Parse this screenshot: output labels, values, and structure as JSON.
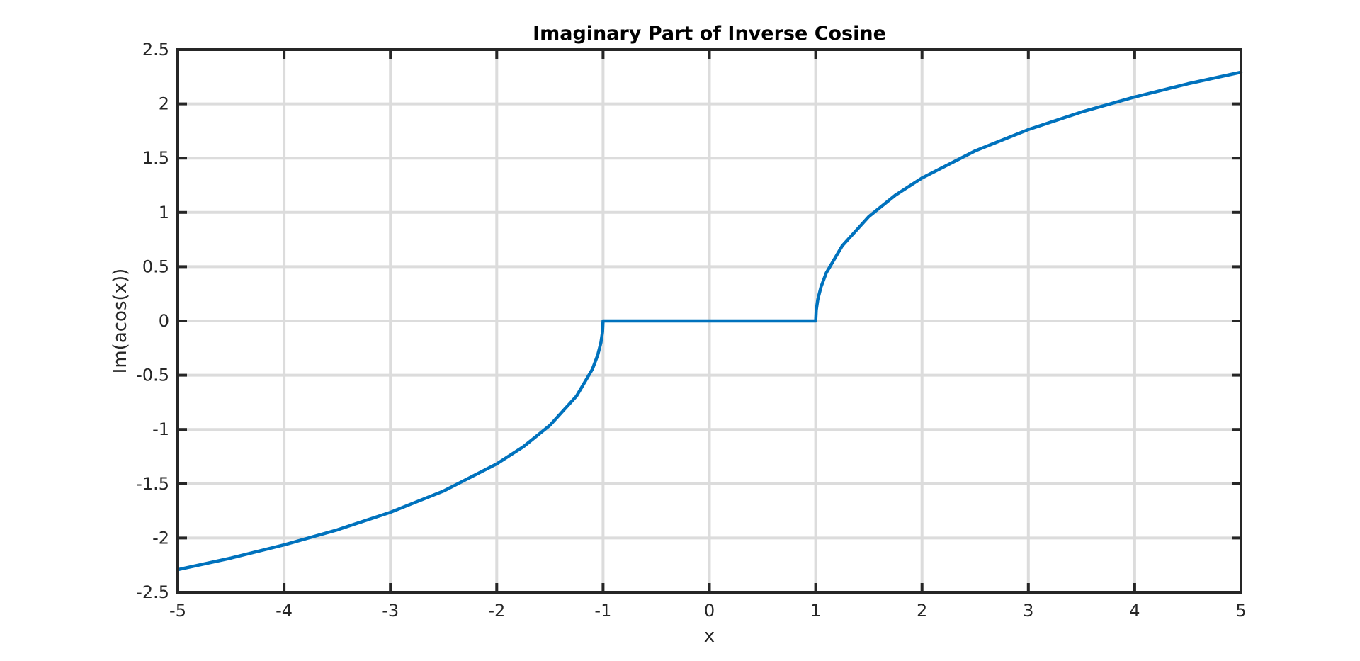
{
  "chart_data": {
    "type": "line",
    "title": "Imaginary Part of Inverse Cosine",
    "xlabel": "x",
    "ylabel": "Im(acos(x))",
    "xlim": [
      -5,
      5
    ],
    "ylim": [
      -2.5,
      2.5
    ],
    "x_ticks": [
      -5,
      -4,
      -3,
      -2,
      -1,
      0,
      1,
      2,
      3,
      4,
      5
    ],
    "x_tick_labels": [
      "-5",
      "-4",
      "-3",
      "-2",
      "-1",
      "0",
      "1",
      "2",
      "3",
      "4",
      "5"
    ],
    "y_ticks": [
      2.5,
      2,
      1.5,
      1,
      0.5,
      0,
      -0.5,
      -1,
      -1.5,
      -2,
      -2.5
    ],
    "y_tick_labels": [
      "2.5",
      "2",
      "1.5",
      "1",
      "0.5",
      "0",
      "-0.5",
      "-1",
      "-1.5",
      "-2",
      "-2.5"
    ],
    "grid": true,
    "legend": false,
    "series": [
      {
        "color": "#0072bd",
        "x": [
          -5,
          -4.5,
          -4,
          -3.5,
          -3,
          -2.5,
          -2,
          -1.75,
          -1.5,
          -1.25,
          -1.1,
          -1.05,
          -1.02,
          -1.005,
          -1,
          1,
          1.005,
          1.02,
          1.05,
          1.1,
          1.25,
          1.5,
          1.75,
          2,
          2.5,
          3,
          3.5,
          4,
          4.5,
          5
        ],
        "y": [
          -2.292,
          -2.185,
          -2.063,
          -1.925,
          -1.763,
          -1.567,
          -1.317,
          -1.159,
          -0.962,
          -0.693,
          -0.444,
          -0.314,
          -0.199,
          -0.1,
          0,
          0,
          0.1,
          0.199,
          0.314,
          0.444,
          0.693,
          0.962,
          1.159,
          1.317,
          1.567,
          1.763,
          1.925,
          2.063,
          2.185,
          2.292
        ]
      }
    ],
    "colors": {
      "line": "#0072bd",
      "axes": "#262626",
      "grid": "#dcdcdc"
    }
  }
}
